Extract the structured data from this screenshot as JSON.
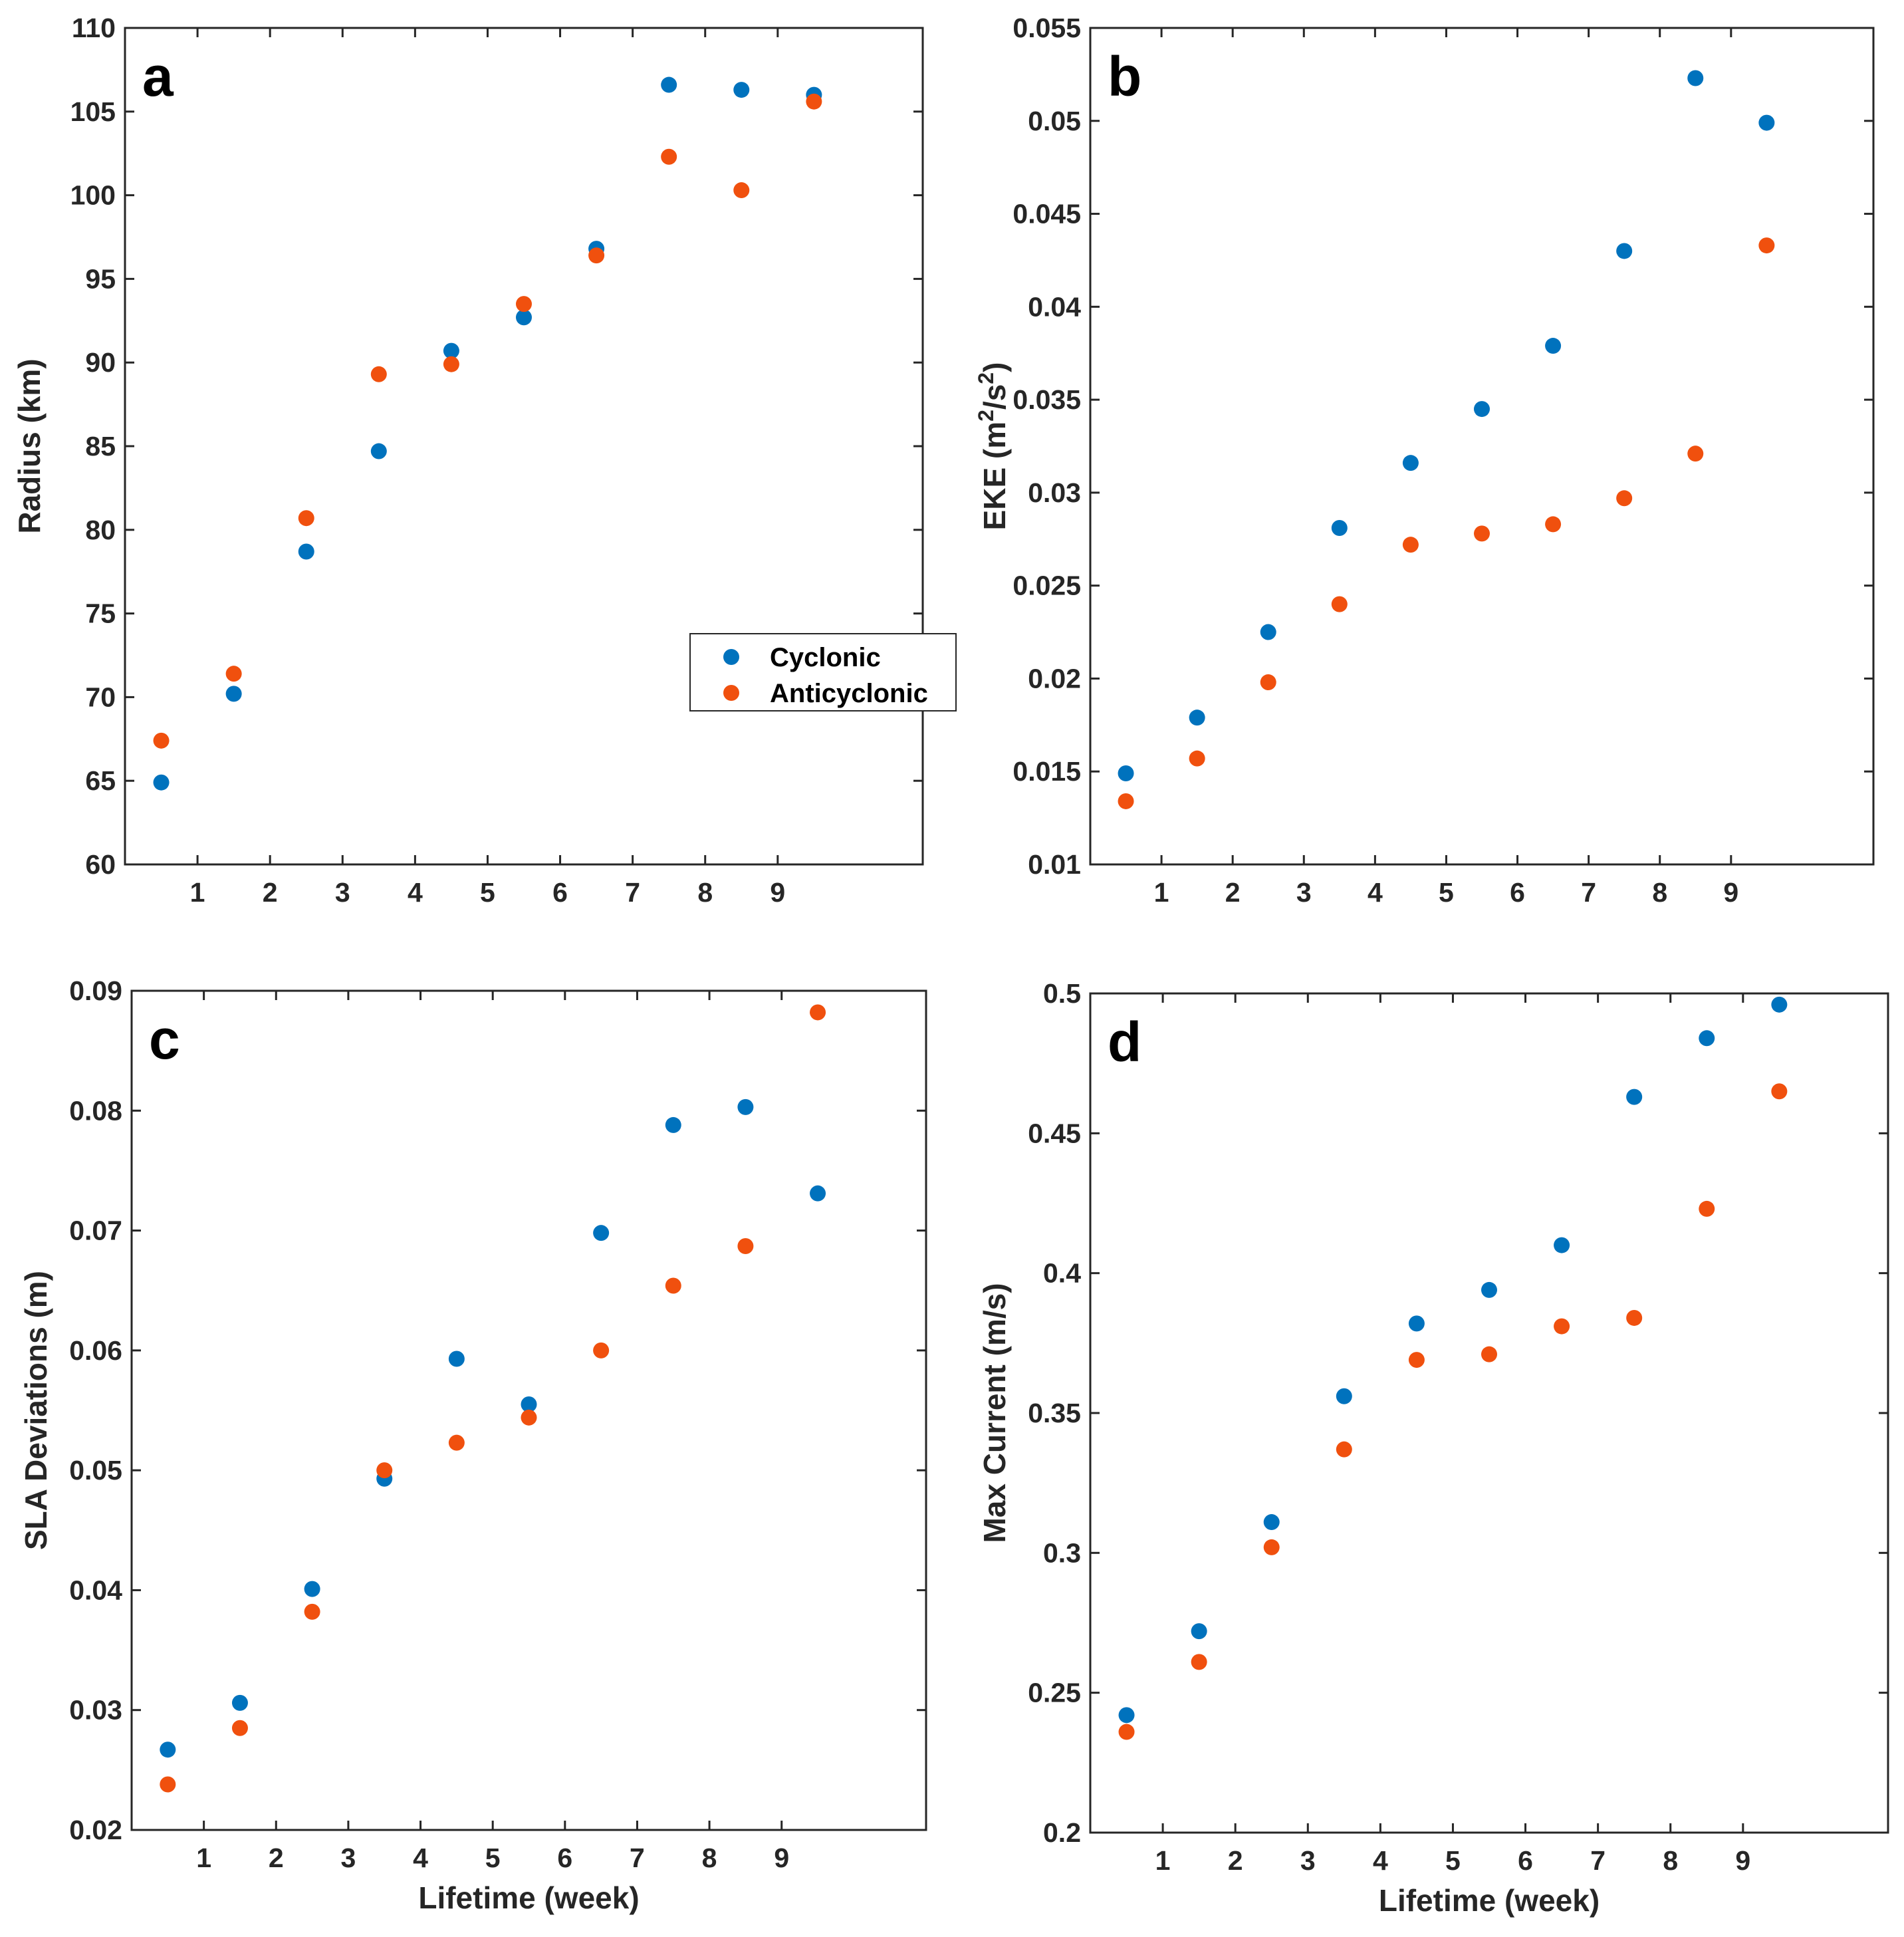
{
  "colors": {
    "cyclonic": "#0072BD",
    "anticyclonic": "#F0500E",
    "axis": "#262626"
  },
  "chart_data": [
    {
      "panel": "a",
      "type": "scatter",
      "ylabel": "Radius (km)",
      "xlabel": "",
      "xlim": [
        0,
        11
      ],
      "ylim": [
        60,
        110
      ],
      "xticks": [
        1,
        2,
        3,
        4,
        5,
        6,
        7,
        8,
        9
      ],
      "yticks": [
        60,
        65,
        70,
        75,
        80,
        85,
        90,
        95,
        100,
        105,
        110
      ],
      "yticklabels": [
        "60",
        "65",
        "70",
        "75",
        "80",
        "85",
        "90",
        "95",
        "100",
        "105",
        "110"
      ],
      "legend": {
        "location": "right",
        "entries": [
          "Cyclonic",
          "Anticyclonic"
        ]
      },
      "x": [
        0.5,
        1.5,
        2.5,
        3.5,
        4.5,
        5.5,
        6.5,
        7.5,
        8.5,
        9.5
      ],
      "series": [
        {
          "name": "Cyclonic",
          "values": [
            64.9,
            70.2,
            78.7,
            84.7,
            90.7,
            92.7,
            96.8,
            106.6,
            106.3,
            106.0
          ]
        },
        {
          "name": "Anticyclonic",
          "values": [
            67.4,
            71.4,
            80.7,
            89.3,
            89.9,
            93.5,
            96.4,
            102.3,
            100.3,
            105.6
          ]
        }
      ]
    },
    {
      "panel": "b",
      "type": "scatter",
      "ylabel": "EKE (m²/s²)",
      "xlabel": "",
      "xlim": [
        0,
        11
      ],
      "ylim": [
        0.01,
        0.055
      ],
      "xticks": [
        1,
        2,
        3,
        4,
        5,
        6,
        7,
        8,
        9
      ],
      "yticks": [
        0.01,
        0.015,
        0.02,
        0.025,
        0.03,
        0.035,
        0.04,
        0.045,
        0.05,
        0.055
      ],
      "yticklabels": [
        "0.01",
        "0.015",
        "0.02",
        "0.025",
        "0.03",
        "0.035",
        "0.04",
        "0.045",
        "0.05",
        "0.055"
      ],
      "x": [
        0.5,
        1.5,
        2.5,
        3.5,
        4.5,
        5.5,
        6.5,
        7.5,
        8.5,
        9.5
      ],
      "series": [
        {
          "name": "Cyclonic",
          "values": [
            0.0149,
            0.0179,
            0.0225,
            0.0281,
            0.0316,
            0.0345,
            0.0379,
            0.043,
            0.0523,
            0.0499
          ]
        },
        {
          "name": "Anticyclonic",
          "values": [
            0.0134,
            0.0157,
            0.0198,
            0.024,
            0.0272,
            0.0278,
            0.0283,
            0.0297,
            0.0321,
            0.0433
          ]
        }
      ]
    },
    {
      "panel": "c",
      "type": "scatter",
      "ylabel": "SLA Deviations (m)",
      "xlabel": "Lifetime (week)",
      "xlim": [
        0,
        11
      ],
      "ylim": [
        0.02,
        0.09
      ],
      "xticks": [
        1,
        2,
        3,
        4,
        5,
        6,
        7,
        8,
        9
      ],
      "yticks": [
        0.02,
        0.03,
        0.04,
        0.05,
        0.06,
        0.07,
        0.08,
        0.09
      ],
      "yticklabels": [
        "0.02",
        "0.03",
        "0.04",
        "0.05",
        "0.06",
        "0.07",
        "0.08",
        "0.09"
      ],
      "x": [
        0.5,
        1.5,
        2.5,
        3.5,
        4.5,
        5.5,
        6.5,
        7.5,
        8.5,
        9.5
      ],
      "series": [
        {
          "name": "Cyclonic",
          "values": [
            0.0267,
            0.0306,
            0.0401,
            0.0493,
            0.0593,
            0.0555,
            0.0698,
            0.0788,
            0.0803,
            0.0731
          ]
        },
        {
          "name": "Anticyclonic",
          "values": [
            0.0238,
            0.0285,
            0.0382,
            0.05,
            0.0523,
            0.0544,
            0.06,
            0.0654,
            0.0687,
            0.0882
          ]
        }
      ]
    },
    {
      "panel": "d",
      "type": "scatter",
      "ylabel": "Max Current (m/s)",
      "xlabel": "Lifetime (week)",
      "xlim": [
        0,
        11
      ],
      "ylim": [
        0.2,
        0.5
      ],
      "xticks": [
        1,
        2,
        3,
        4,
        5,
        6,
        7,
        8,
        9
      ],
      "yticks": [
        0.2,
        0.25,
        0.3,
        0.35,
        0.4,
        0.45,
        0.5
      ],
      "yticklabels": [
        "0.2",
        "0.25",
        "0.3",
        "0.35",
        "0.4",
        "0.45",
        "0.5"
      ],
      "x": [
        0.5,
        1.5,
        2.5,
        3.5,
        4.5,
        5.5,
        6.5,
        7.5,
        8.5,
        9.5
      ],
      "series": [
        {
          "name": "Cyclonic",
          "values": [
            0.242,
            0.272,
            0.311,
            0.356,
            0.382,
            0.394,
            0.41,
            0.463,
            0.484,
            0.496
          ]
        },
        {
          "name": "Anticyclonic",
          "values": [
            0.236,
            0.261,
            0.302,
            0.337,
            0.369,
            0.371,
            0.381,
            0.384,
            0.423,
            0.465
          ]
        }
      ]
    }
  ]
}
